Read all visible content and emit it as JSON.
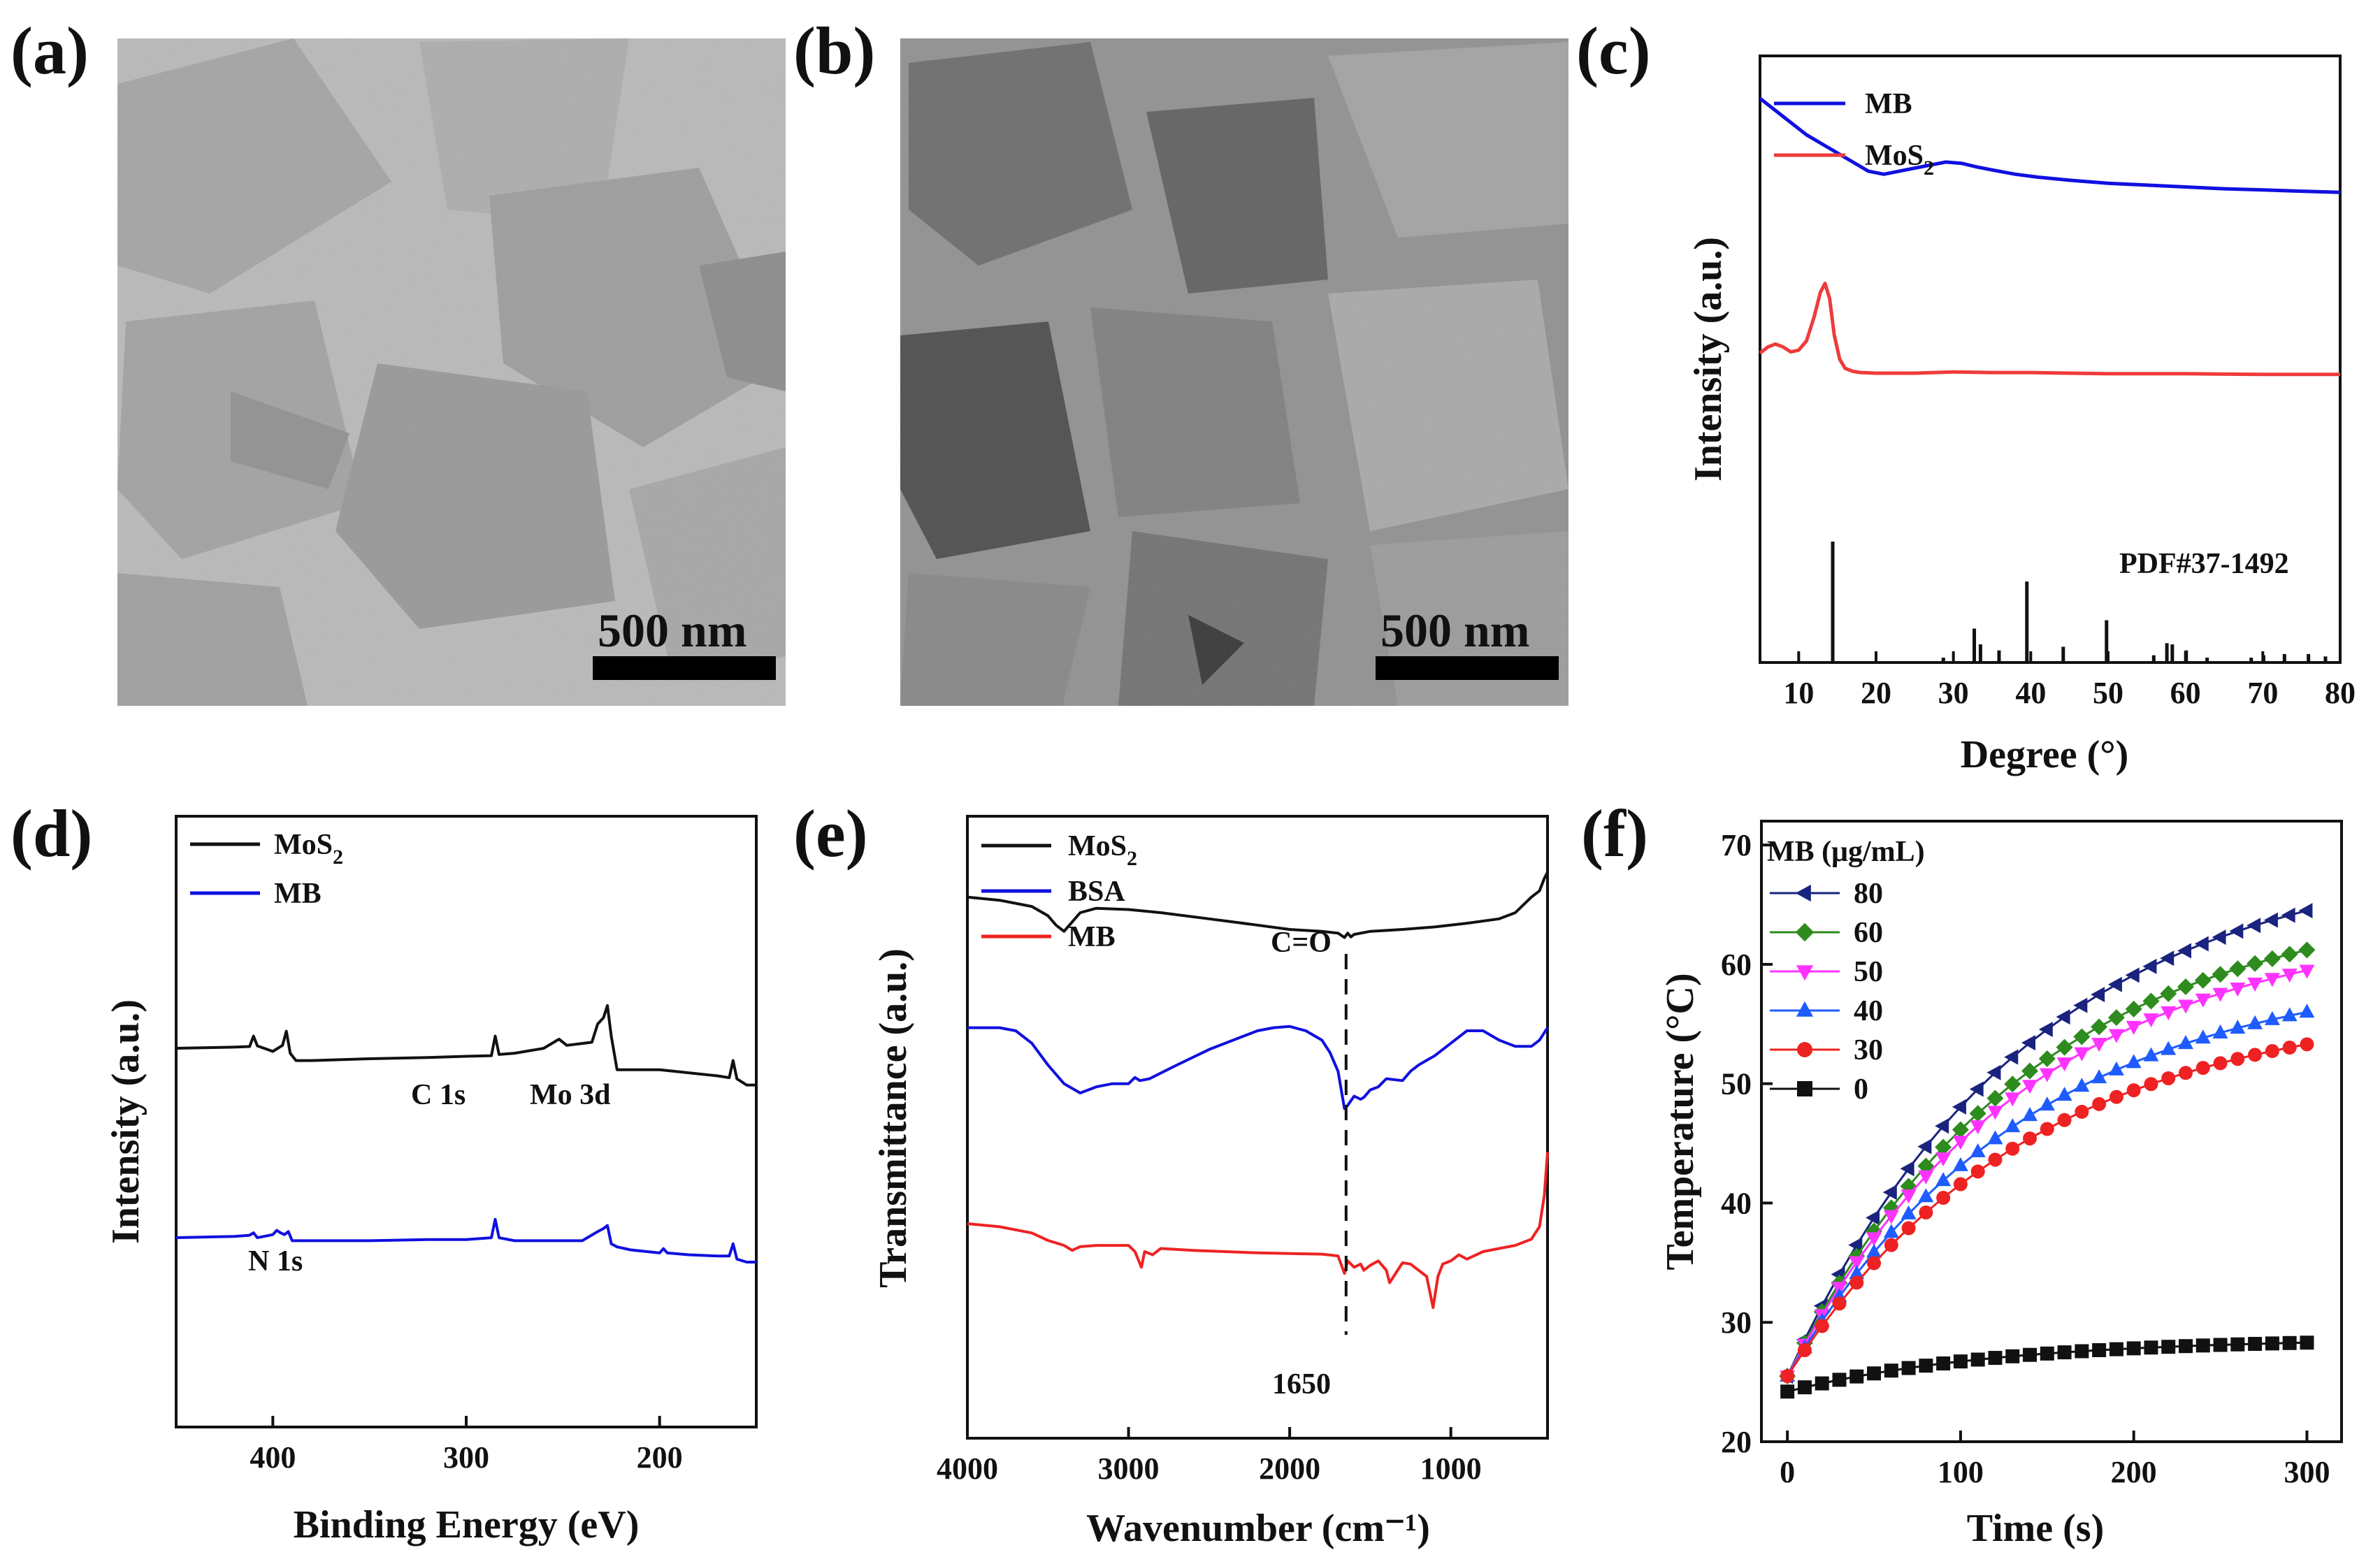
{
  "panels": {
    "a": {
      "label": "(a)",
      "scale_bar": "500 nm"
    },
    "b": {
      "label": "(b)",
      "scale_bar": "500 nm"
    }
  },
  "colors": {
    "black": "#111111",
    "blue": "#1010e0",
    "red": "#ef3b3b",
    "navy": "#1a237e",
    "green": "#2e8b1e",
    "magenta": "#ff33ff",
    "lightblue": "#1f5cff",
    "dotred": "#ee2222"
  },
  "chart_data": [
    {
      "id": "c",
      "label": "(c)",
      "type": "line",
      "xlabel": "Degree (°)",
      "ylabel": "Intensity (a.u.)",
      "xlim": [
        5,
        80
      ],
      "xticks": [
        10,
        20,
        30,
        40,
        50,
        60,
        70,
        80
      ],
      "legend": [
        {
          "name": "MB",
          "color": "#1010e0"
        },
        {
          "name": "MoS",
          "sub": "2",
          "color": "#ef3b3b"
        }
      ],
      "reference_label": "PDF#37-1492",
      "series": [
        {
          "name": "MB",
          "color": "#1010e0",
          "x": [
            5,
            7,
            9,
            11,
            13,
            15,
            17,
            19,
            21,
            23,
            25,
            27,
            29,
            31,
            33,
            35,
            38,
            41,
            45,
            50,
            55,
            60,
            65,
            70,
            75,
            80
          ],
          "y": [
            0.93,
            0.91,
            0.89,
            0.87,
            0.855,
            0.84,
            0.825,
            0.81,
            0.805,
            0.81,
            0.815,
            0.82,
            0.825,
            0.823,
            0.817,
            0.812,
            0.805,
            0.8,
            0.795,
            0.79,
            0.787,
            0.784,
            0.781,
            0.779,
            0.777,
            0.775
          ]
        },
        {
          "name": "MoS2",
          "color": "#ef3b3b",
          "x": [
            5,
            6,
            7,
            8,
            9,
            10,
            11,
            12,
            12.8,
            13.4,
            14,
            14.6,
            15.3,
            16,
            17,
            18,
            20,
            25,
            30,
            35,
            40,
            45,
            50,
            60,
            70,
            80
          ],
          "y": [
            0.51,
            0.52,
            0.525,
            0.52,
            0.512,
            0.515,
            0.53,
            0.57,
            0.61,
            0.625,
            0.6,
            0.54,
            0.5,
            0.485,
            0.48,
            0.478,
            0.477,
            0.477,
            0.479,
            0.478,
            0.478,
            0.477,
            0.476,
            0.476,
            0.475,
            0.475
          ]
        }
      ],
      "reference_peaks": {
        "x": [
          14.4,
          28.7,
          32.7,
          33.5,
          35.9,
          39.5,
          44.2,
          49.8,
          55.9,
          57.6,
          58.3,
          60.1,
          62.8,
          68.5,
          70.1,
          72.8,
          75.9,
          78.1
        ],
        "h": [
          1.0,
          0.04,
          0.28,
          0.15,
          0.1,
          0.67,
          0.13,
          0.35,
          0.06,
          0.16,
          0.15,
          0.1,
          0.04,
          0.04,
          0.06,
          0.07,
          0.07,
          0.05
        ]
      }
    },
    {
      "id": "d",
      "label": "(d)",
      "type": "line",
      "xlabel": "Binding Energy (eV)",
      "ylabel": "Intensity (a.u.)",
      "xlim": [
        450,
        150
      ],
      "xticks": [
        400,
        300,
        200
      ],
      "legend": [
        {
          "name": "MoS",
          "sub": "2",
          "color": "#111111"
        },
        {
          "name": "MB",
          "color": "#1010e0"
        }
      ],
      "annotations": [
        {
          "text": "C 1s",
          "x": 285
        },
        {
          "text": "Mo 3d",
          "x": 232
        },
        {
          "text": "N 1s",
          "x": 400
        }
      ],
      "series": [
        {
          "name": "MoS2",
          "color": "#111111",
          "x": [
            450,
            420,
            412,
            410,
            408,
            400,
            395,
            393,
            391,
            388,
            380,
            350,
            320,
            300,
            287,
            285,
            283,
            275,
            260,
            252,
            248,
            240,
            235,
            232,
            229,
            227,
            225,
            222,
            215,
            200,
            185,
            170,
            164,
            162,
            160,
            155,
            150
          ],
          "y": [
            0.62,
            0.622,
            0.623,
            0.64,
            0.624,
            0.615,
            0.625,
            0.648,
            0.612,
            0.6,
            0.6,
            0.603,
            0.605,
            0.607,
            0.608,
            0.64,
            0.61,
            0.612,
            0.62,
            0.635,
            0.625,
            0.628,
            0.63,
            0.66,
            0.67,
            0.69,
            0.64,
            0.585,
            0.585,
            0.585,
            0.58,
            0.575,
            0.572,
            0.6,
            0.57,
            0.56,
            0.56
          ]
        },
        {
          "name": "MB",
          "color": "#1010e0",
          "x": [
            450,
            420,
            412,
            410,
            408,
            400,
            398,
            396,
            394,
            392,
            390,
            380,
            350,
            320,
            300,
            287,
            285,
            283,
            275,
            255,
            240,
            232,
            229,
            227,
            225,
            222,
            215,
            200,
            198,
            196,
            185,
            170,
            164,
            162,
            160,
            155,
            150
          ],
          "y": [
            0.31,
            0.312,
            0.314,
            0.318,
            0.31,
            0.315,
            0.322,
            0.318,
            0.315,
            0.32,
            0.305,
            0.305,
            0.305,
            0.307,
            0.307,
            0.31,
            0.34,
            0.31,
            0.305,
            0.305,
            0.305,
            0.32,
            0.325,
            0.33,
            0.3,
            0.295,
            0.29,
            0.285,
            0.292,
            0.285,
            0.282,
            0.28,
            0.28,
            0.3,
            0.275,
            0.27,
            0.27
          ]
        }
      ]
    },
    {
      "id": "e",
      "label": "(e)",
      "type": "line",
      "xlabel": "Wavenumber (cm⁻¹)",
      "ylabel": "Transmittance (a.u.)",
      "xlim": [
        4000,
        400
      ],
      "xticks": [
        4000,
        3000,
        2000,
        1000
      ],
      "legend": [
        {
          "name": "MoS",
          "sub": "2",
          "color": "#111111"
        },
        {
          "name": "BSA",
          "color": "#1010e0"
        },
        {
          "name": "MB",
          "color": "#ee2222"
        }
      ],
      "annotations": [
        {
          "text": "C=O",
          "x": 1650,
          "position": "above"
        },
        {
          "text": "1650",
          "x": 1650,
          "position": "below"
        }
      ],
      "marker_line_x": 1650,
      "series": [
        {
          "name": "MoS2",
          "color": "#111111",
          "x": [
            4000,
            3800,
            3600,
            3500,
            3450,
            3400,
            3350,
            3300,
            3200,
            3000,
            2800,
            2500,
            2200,
            2000,
            1800,
            1700,
            1660,
            1640,
            1620,
            1600,
            1500,
            1300,
            1100,
            900,
            700,
            600,
            500,
            450,
            420,
            400
          ],
          "y": [
            0.87,
            0.865,
            0.855,
            0.84,
            0.825,
            0.815,
            0.83,
            0.845,
            0.852,
            0.85,
            0.845,
            0.835,
            0.825,
            0.818,
            0.815,
            0.812,
            0.805,
            0.812,
            0.806,
            0.81,
            0.815,
            0.818,
            0.822,
            0.828,
            0.835,
            0.845,
            0.87,
            0.88,
            0.9,
            0.91
          ]
        },
        {
          "name": "BSA",
          "color": "#1010e0",
          "x": [
            4000,
            3800,
            3700,
            3600,
            3500,
            3400,
            3300,
            3200,
            3100,
            3000,
            2960,
            2930,
            2870,
            2700,
            2500,
            2300,
            2200,
            2100,
            2000,
            1900,
            1800,
            1750,
            1700,
            1680,
            1660,
            1640,
            1600,
            1560,
            1540,
            1500,
            1450,
            1400,
            1300,
            1250,
            1200,
            1100,
            1000,
            900,
            800,
            700,
            600,
            500,
            450,
            400
          ],
          "y": [
            0.66,
            0.66,
            0.655,
            0.635,
            0.6,
            0.57,
            0.555,
            0.565,
            0.57,
            0.57,
            0.58,
            0.575,
            0.578,
            0.6,
            0.625,
            0.645,
            0.655,
            0.66,
            0.662,
            0.655,
            0.64,
            0.62,
            0.59,
            0.56,
            0.53,
            0.535,
            0.55,
            0.545,
            0.548,
            0.56,
            0.565,
            0.578,
            0.575,
            0.59,
            0.6,
            0.615,
            0.635,
            0.655,
            0.655,
            0.64,
            0.63,
            0.63,
            0.64,
            0.66
          ]
        },
        {
          "name": "MB",
          "color": "#ee2222",
          "x": [
            4000,
            3800,
            3600,
            3500,
            3400,
            3350,
            3300,
            3200,
            3000,
            2960,
            2920,
            2900,
            2850,
            2800,
            2600,
            2400,
            2200,
            2000,
            1800,
            1700,
            1660,
            1640,
            1600,
            1560,
            1540,
            1500,
            1450,
            1400,
            1380,
            1300,
            1250,
            1200,
            1150,
            1110,
            1080,
            1050,
            1000,
            950,
            900,
            800,
            700,
            600,
            500,
            450,
            420,
            400
          ],
          "y": [
            0.345,
            0.34,
            0.33,
            0.318,
            0.31,
            0.302,
            0.308,
            0.31,
            0.31,
            0.3,
            0.275,
            0.3,
            0.295,
            0.305,
            0.302,
            0.3,
            0.298,
            0.297,
            0.296,
            0.293,
            0.265,
            0.285,
            0.275,
            0.28,
            0.27,
            0.278,
            0.285,
            0.27,
            0.25,
            0.282,
            0.28,
            0.27,
            0.26,
            0.21,
            0.26,
            0.28,
            0.285,
            0.295,
            0.288,
            0.3,
            0.305,
            0.31,
            0.32,
            0.34,
            0.39,
            0.46
          ]
        }
      ]
    },
    {
      "id": "f",
      "label": "(f)",
      "type": "scatter",
      "xlabel": "Time (s)",
      "ylabel": "Temperature (°C)",
      "xlim": [
        -15,
        320
      ],
      "ylim": [
        20,
        72
      ],
      "xticks": [
        0,
        100,
        200,
        300
      ],
      "yticks": [
        20,
        30,
        40,
        50,
        60,
        70
      ],
      "legend_title": "MB (μg/mL)",
      "series": [
        {
          "name": "80",
          "color": "#1a237e",
          "marker": "triangle-left",
          "T0": 25.5,
          "Tmax": 64.5
        },
        {
          "name": "60",
          "color": "#2e8b1e",
          "marker": "diamond",
          "T0": 25.5,
          "Tmax": 61.2
        },
        {
          "name": "50",
          "color": "#ff33ff",
          "marker": "triangle-down",
          "T0": 25.5,
          "Tmax": 59.5
        },
        {
          "name": "40",
          "color": "#1f5cff",
          "marker": "triangle-up",
          "T0": 25.5,
          "Tmax": 56.0
        },
        {
          "name": "30",
          "color": "#ee2222",
          "marker": "circle",
          "T0": 25.5,
          "Tmax": 53.3
        },
        {
          "name": "0",
          "color": "#111111",
          "marker": "square",
          "T0": 24.2,
          "Tmax": 28.3
        }
      ]
    }
  ]
}
